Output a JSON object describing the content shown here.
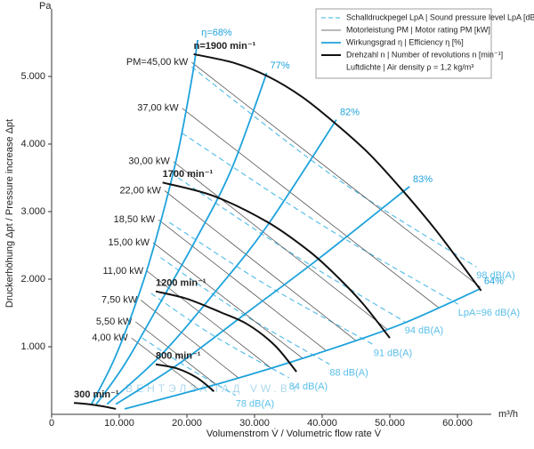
{
  "chart_data": {
    "type": "line",
    "y_unit": "Pa",
    "x_unit": "m³/h",
    "x_label": "Volumenstrom V̇ / Volumetric flow rate V̇",
    "y_label": "Druckerhöhung Δpt / Pressure increase Δpt",
    "watermark": "ВЕНТЭЛЗАПАД VW.BY",
    "xlim": [
      0,
      65000
    ],
    "ylim": [
      0,
      6000
    ],
    "xticks": [
      0,
      {
        "value": 10000,
        "label": "10.000"
      },
      {
        "value": 20000,
        "label": "20.000"
      },
      {
        "value": 30000,
        "label": "30.000"
      },
      {
        "value": 40000,
        "label": "40.000"
      },
      {
        "value": 50000,
        "label": "50.000"
      },
      {
        "value": 60000,
        "label": "60.000"
      }
    ],
    "yticks": [
      {
        "value": 1000,
        "label": "1.000"
      },
      {
        "value": 2000,
        "label": "2.000"
      },
      {
        "value": 3000,
        "label": "3.000"
      },
      {
        "value": 4000,
        "label": "4.000"
      },
      {
        "value": 5000,
        "label": "5.000"
      }
    ],
    "note": "Luftdichte | Air density ρ = 1,2 kg/m³",
    "groups": [
      {
        "name": "Schalldruckpegel LpA | Sound pressure level LpA [dB(A)]",
        "color": "#5bbfe9",
        "width": 1.2,
        "dashed": true,
        "lines": [
          {
            "label": "98 dB(A)",
            "x": [
              20700,
              42000,
              62800
            ],
            "y": [
              5140,
              3500,
              2180
            ]
          },
          {
            "label": "LpA=96 dB(A)",
            "x": [
              19300,
              40000,
              60100
            ],
            "y": [
              4160,
              2800,
              1630
            ]
          },
          {
            "label": "94 dB(A)",
            "x": [
              18700,
              36000,
              52200
            ],
            "y": [
              3500,
              2350,
              1370
            ]
          },
          {
            "label": "91 dB(A)",
            "x": [
              17400,
              32000,
              47600
            ],
            "y": [
              2840,
              1900,
              1030
            ]
          },
          {
            "label": "88 dB(A)",
            "x": [
              16100,
              28000,
              41100
            ],
            "y": [
              2320,
              1500,
              740
            ]
          },
          {
            "label": "84 dB(A)",
            "x": [
              14700,
              24000,
              35100
            ],
            "y": [
              1790,
              1160,
              540
            ]
          },
          {
            "label": "78 dB(A)",
            "x": [
              13400,
              20000,
              27200
            ],
            "y": [
              1130,
              700,
              280
            ]
          }
        ]
      },
      {
        "name": "Motorleistung PM | Motor rating PM [kW]",
        "color": "#444444",
        "width": 0.7,
        "dashed": false,
        "lines": [
          {
            "label": "PM=45,00 kW",
            "x": [
              20700,
              63400
            ],
            "y": [
              5210,
              1880
            ]
          },
          {
            "label": "37,00 kW",
            "x": [
              19300,
              57200
            ],
            "y": [
              4530,
              1580
            ]
          },
          {
            "label": "30,00 kW",
            "x": [
              18000,
              49600
            ],
            "y": [
              3740,
              1260
            ]
          },
          {
            "label": "22,00 kW",
            "x": [
              16700,
              45000
            ],
            "y": [
              3310,
              1090
            ]
          },
          {
            "label": "18,50 kW",
            "x": [
              15800,
              40500
            ],
            "y": [
              2880,
              950
            ]
          },
          {
            "label": "15,00 kW",
            "x": [
              15000,
              37100
            ],
            "y": [
              2540,
              830
            ]
          },
          {
            "label": "11,00 kW",
            "x": [
              14100,
              32500
            ],
            "y": [
              2120,
              680
            ]
          },
          {
            "label": "7,50 kW",
            "x": [
              13200,
              27600
            ],
            "y": [
              1690,
              540
            ]
          },
          {
            "label": "5,50 kW",
            "x": [
              12400,
              24200
            ],
            "y": [
              1370,
              450
            ]
          },
          {
            "label": "4,00 kW",
            "x": [
              11800,
              21600
            ],
            "y": [
              1130,
              380
            ]
          }
        ]
      },
      {
        "name": "Wirkungsgrad η | Efficiency η [%]",
        "color": "#1fa3dc",
        "width": 1.8,
        "dashed": false,
        "lines": [
          {
            "label": "η=68%",
            "x": [
              5900,
              9500,
              13400,
              16100,
              18700,
              20700,
              21600
            ],
            "y": [
              150,
              870,
              1920,
              2840,
              3890,
              4950,
              5540
            ]
          },
          {
            "label": "77%",
            "x": [
              6600,
              10800,
              16100,
              21300,
              26600,
              31800
            ],
            "y": [
              150,
              740,
              1660,
              2580,
              3630,
              5050
            ]
          },
          {
            "label": "82%",
            "x": [
              8200,
              16100,
              24000,
              31800,
              42100
            ],
            "y": [
              150,
              870,
              1790,
              2780,
              4360
            ]
          },
          {
            "label": "83%",
            "x": [
              9500,
              18700,
              29200,
              39700,
              52900
            ],
            "y": [
              150,
              740,
              1530,
              2320,
              3370
            ]
          },
          {
            "label": "64%",
            "x": [
              10800,
              25300,
              38400,
              51600,
              63400
            ],
            "y": [
              80,
              470,
              870,
              1330,
              1860
            ]
          }
        ]
      },
      {
        "name": "Drehzahl n | Number of revolutions n [min⁻¹]",
        "color": "#111111",
        "width": 2,
        "dashed": false,
        "lines": [
          {
            "label": "n=1900 min⁻¹",
            "x": [
              21000,
              27000,
              32000,
              37000,
              42000,
              47000,
              52000,
              57000,
              63500
            ],
            "y": [
              5330,
              5200,
              5000,
              4700,
              4300,
              3850,
              3300,
              2700,
              1830
            ]
          },
          {
            "label": "1700 min⁻¹",
            "x": [
              16400,
              24000,
              32000,
              38000,
              42000,
              46000,
              50000
            ],
            "y": [
              3430,
              3230,
              2840,
              2420,
              2060,
              1640,
              1130
            ]
          },
          {
            "label": "1200 min⁻¹",
            "x": [
              15400,
              20000,
              25000,
              29000,
              33000,
              36200
            ],
            "y": [
              1820,
              1710,
              1510,
              1330,
              1020,
              630
            ]
          },
          {
            "label": "800 min⁻¹",
            "x": [
              15400,
              18500,
              21500,
              24000
            ],
            "y": [
              740,
              680,
              540,
              340
            ]
          },
          {
            "label": "300 min⁻¹",
            "x": [
              3300,
              5500,
              7500,
              9500
            ],
            "y": [
              170,
              150,
              120,
              80
            ]
          }
        ]
      }
    ]
  }
}
